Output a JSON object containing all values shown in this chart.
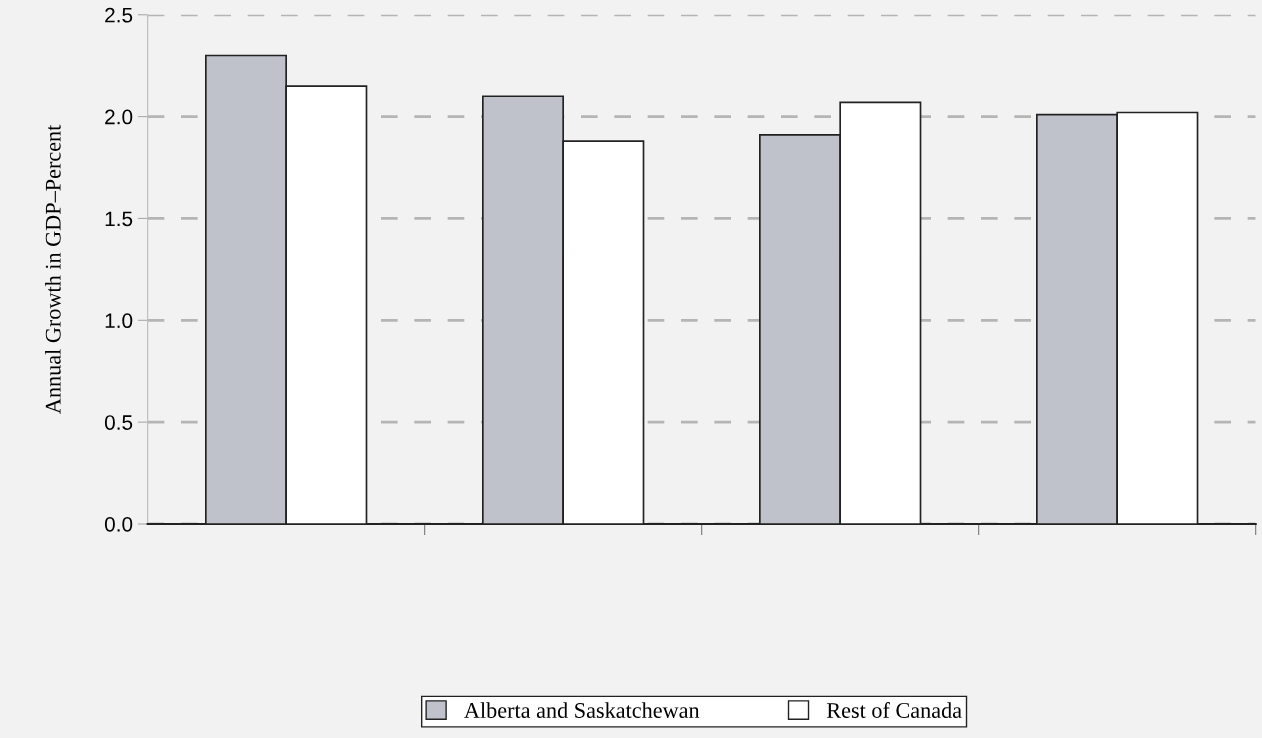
{
  "chart_data": {
    "type": "bar",
    "ylabel": "Annual Growth in GDP–Percent",
    "categories": [
      null,
      null,
      null,
      null
    ],
    "series": [
      {
        "name": "Alberta and Saskatchewan",
        "color": "#bfc2ca",
        "values": [
          2.3,
          2.1,
          1.91,
          2.01
        ]
      },
      {
        "name": "Rest of Canada",
        "color": "#ffffff",
        "values": [
          2.15,
          1.88,
          2.07,
          2.02
        ]
      }
    ],
    "ylim": [
      0,
      2.5
    ],
    "yticks": [
      {
        "value": 0,
        "label": "0.0"
      },
      {
        "value": 0.5,
        "label": "0.5"
      },
      {
        "value": 1,
        "label": "1.0"
      },
      {
        "value": 1.5,
        "label": "1.5"
      },
      {
        "value": 2,
        "label": "2.0"
      },
      {
        "value": 2.5,
        "label": "2.5"
      }
    ],
    "grid": "y",
    "legend": "bottom"
  }
}
